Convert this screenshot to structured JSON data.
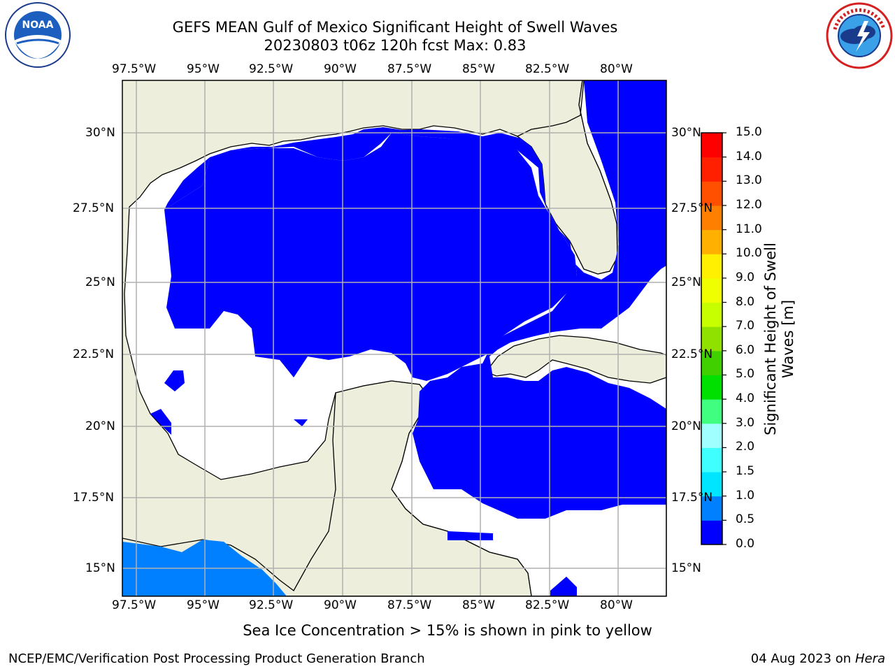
{
  "title_line1": "GEFS MEAN Gulf of Mexico Significant Height of Swell Waves",
  "title_line2": "20230803 t06z 120h fcst   Max: 0.83",
  "top_lon_labels": [
    "97.5°W",
    "95°W",
    "92.5°W",
    "90°W",
    "87.5°W",
    "85°W",
    "82.5°W",
    "80°W"
  ],
  "bottom_lon_labels": [
    "97.5°W",
    "95°W",
    "92.5°W",
    "90°W",
    "87.5°W",
    "85°W",
    "82.5°W",
    "80°W"
  ],
  "left_lat_labels": [
    "30°N",
    "27.5°N",
    "25°N",
    "22.5°N",
    "20°N",
    "17.5°N",
    "15°N"
  ],
  "right_lat_labels": [
    "30°N",
    "27.5°N",
    "25°N",
    "22.5°N",
    "20°N",
    "17.5°N",
    "15°N"
  ],
  "colorbar": {
    "label": "Significant Height of Swell Waves [m]",
    "ticks": [
      "0.0",
      "0.5",
      "1.0",
      "1.5",
      "2.0",
      "3.0",
      "4.0",
      "5.0",
      "6.0",
      "7.0",
      "8.0",
      "9.0",
      "10.0",
      "11.0",
      "12.0",
      "13.0",
      "14.0",
      "15.0"
    ],
    "colors": [
      "#0000ff",
      "#0080ff",
      "#00e5ff",
      "#40ffff",
      "#a0ffff",
      "#40ff80",
      "#00e000",
      "#40d000",
      "#90e000",
      "#c8ff00",
      "#f0ff00",
      "#ffef00",
      "#ffb000",
      "#ff8000",
      "#ff5000",
      "#ff2000",
      "#ff0000"
    ]
  },
  "colors": {
    "land": "#eeeedc",
    "no_data": "#ffffff",
    "grid": "#b0b0b0",
    "coast": "#000000"
  },
  "note": "Sea Ice Concentration > 15% is shown in pink to yellow",
  "footer_left": "NCEP/EMC/Verification Post Processing Product Generation Branch",
  "footer_date": "04 Aug 2023 on",
  "footer_machine": "Hera",
  "logos": {
    "left_text": "NOAA",
    "left_icon": "noaa-logo-icon",
    "right_icon": "nws-logo-icon"
  }
}
